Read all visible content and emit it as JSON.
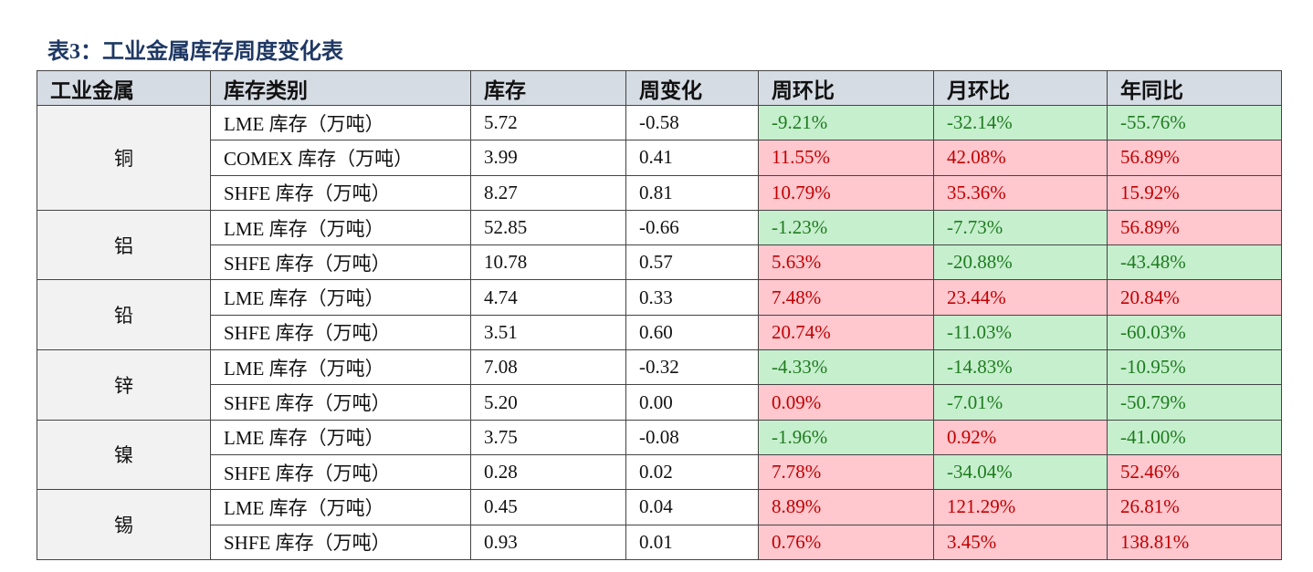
{
  "title": "表3：工业金属库存周度变化表",
  "table": {
    "header": [
      "工业金属",
      "库存类别",
      "库存",
      "周变化",
      "周环比",
      "月环比",
      "年同比"
    ],
    "groups": [
      {
        "metal": "铜",
        "rows": [
          [
            "LME 库存（万吨）",
            "5.72",
            "-0.58",
            "-9.21%",
            "-32.14%",
            "-55.76%"
          ],
          [
            "COMEX 库存（万吨）",
            "3.99",
            "0.41",
            "11.55%",
            "42.08%",
            "56.89%"
          ],
          [
            "SHFE 库存（万吨）",
            "8.27",
            "0.81",
            "10.79%",
            "35.36%",
            "15.92%"
          ]
        ]
      },
      {
        "metal": "铝",
        "rows": [
          [
            "LME 库存（万吨）",
            "52.85",
            "-0.66",
            "-1.23%",
            "-7.73%",
            "56.89%"
          ],
          [
            "SHFE 库存（万吨）",
            "10.78",
            "0.57",
            "5.63%",
            "-20.88%",
            "-43.48%"
          ]
        ]
      },
      {
        "metal": "铅",
        "rows": [
          [
            "LME 库存（万吨）",
            "4.74",
            "0.33",
            "7.48%",
            "23.44%",
            "20.84%"
          ],
          [
            "SHFE 库存（万吨）",
            "3.51",
            "0.60",
            "20.74%",
            "-11.03%",
            "-60.03%"
          ]
        ]
      },
      {
        "metal": "锌",
        "rows": [
          [
            "LME 库存（万吨）",
            "7.08",
            "-0.32",
            "-4.33%",
            "-14.83%",
            "-10.95%"
          ],
          [
            "SHFE 库存（万吨）",
            "5.20",
            "0.00",
            "0.09%",
            "-7.01%",
            "-50.79%"
          ]
        ]
      },
      {
        "metal": "镍",
        "rows": [
          [
            "LME 库存（万吨）",
            "3.75",
            "-0.08",
            "-1.96%",
            "0.92%",
            "-41.00%"
          ],
          [
            "SHFE 库存（万吨）",
            "0.28",
            "0.02",
            "7.78%",
            "-34.04%",
            "52.46%"
          ]
        ]
      },
      {
        "metal": "锡",
        "rows": [
          [
            "LME 库存（万吨）",
            "0.45",
            "0.04",
            "8.89%",
            "121.29%",
            "26.81%"
          ],
          [
            "SHFE 库存（万吨）",
            "0.93",
            "0.01",
            "0.76%",
            "3.45%",
            "138.81%"
          ]
        ]
      }
    ]
  }
}
